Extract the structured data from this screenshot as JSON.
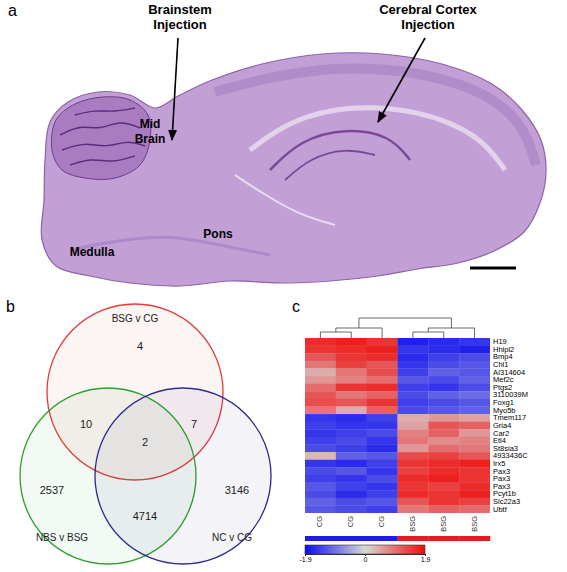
{
  "panel_a": {
    "letter": "a",
    "labels": {
      "brainstem_injection": "Brainstem Injection",
      "cortex_injection": "Cerebral Cortex Injection",
      "mid_brain": "Mid Brain",
      "pons": "Pons",
      "medulla": "Medulla"
    }
  },
  "panel_b": {
    "letter": "b",
    "sets": [
      {
        "name": "BSG v CG",
        "color": "#e03c3c"
      },
      {
        "name": "NBS v BSG",
        "color": "#2ca02c"
      },
      {
        "name": "NC v CG",
        "color": "#2c2c8c"
      }
    ],
    "regions": [
      {
        "sets": [
          0
        ],
        "count": 4
      },
      {
        "sets": [
          0,
          1
        ],
        "count": 10
      },
      {
        "sets": [
          0,
          2
        ],
        "count": 7
      },
      {
        "sets": [
          0,
          1,
          2
        ],
        "count": 2
      },
      {
        "sets": [
          1
        ],
        "count": 2537
      },
      {
        "sets": [
          1,
          2
        ],
        "count": 4714
      },
      {
        "sets": [
          2
        ],
        "count": 3146
      }
    ]
  },
  "panel_c": {
    "letter": "c"
  },
  "chart_data": {
    "type": "heatmap",
    "rows": [
      "H19",
      "Hhipl2",
      "Bmp4",
      "Chl1",
      "AI314604",
      "Mef2c",
      "Ptgs2",
      "3110039M",
      "Foxg1",
      "Myo5b",
      "Tmem117",
      "Gria4",
      "Car2",
      "Etl4",
      "St8sia3",
      "4933436C",
      "Irx5",
      "Pax3",
      "Pax3",
      "Pax3",
      "Pcyt1b",
      "Slc22a3",
      "Ubtf"
    ],
    "columns": [
      "CG",
      "CG",
      "CG",
      "BSG",
      "BSG",
      "BSG"
    ],
    "values": [
      [
        1.6,
        1.7,
        1.5,
        -1.7,
        -1.6,
        -1.5
      ],
      [
        1.5,
        1.6,
        1.7,
        -1.5,
        -1.6,
        -1.7
      ],
      [
        1.2,
        1.5,
        1.6,
        -1.6,
        -1.4,
        -1.3
      ],
      [
        0.9,
        1.4,
        1.2,
        -1.5,
        -1.3,
        -1.2
      ],
      [
        0.4,
        0.9,
        1.3,
        -1.4,
        -1.1,
        -1.2
      ],
      [
        0.6,
        0.8,
        1.0,
        -1.2,
        -1.3,
        -1.1
      ],
      [
        1.0,
        1.5,
        1.6,
        -1.4,
        -1.5,
        -1.3
      ],
      [
        1.2,
        0.9,
        1.1,
        -1.3,
        -1.1,
        -1.0
      ],
      [
        1.3,
        1.2,
        1.5,
        -1.4,
        -1.3,
        -1.2
      ],
      [
        0.9,
        0.4,
        1.1,
        -1.3,
        -1.2,
        -1.1
      ],
      [
        -1.5,
        -1.6,
        -1.4,
        0.4,
        0.6,
        0.5
      ],
      [
        -1.4,
        -1.5,
        -1.5,
        0.5,
        1.2,
        1.1
      ],
      [
        -1.5,
        -1.4,
        -1.3,
        0.8,
        1.1,
        0.6
      ],
      [
        -1.4,
        -1.3,
        -1.5,
        0.9,
        0.7,
        0.8
      ],
      [
        -1.3,
        -1.4,
        -1.6,
        0.6,
        1.0,
        0.9
      ],
      [
        0.3,
        -1.1,
        -1.2,
        1.3,
        1.4,
        1.2
      ],
      [
        -1.5,
        -1.6,
        -1.4,
        1.5,
        1.6,
        1.7
      ],
      [
        -1.3,
        -1.2,
        -1.5,
        1.4,
        1.6,
        1.5
      ],
      [
        -1.4,
        -1.5,
        -1.3,
        1.6,
        1.7,
        1.5
      ],
      [
        -1.2,
        -1.4,
        -1.5,
        1.5,
        1.4,
        1.6
      ],
      [
        -1.3,
        -1.6,
        -1.4,
        1.6,
        1.5,
        1.7
      ],
      [
        -1.1,
        -1.3,
        -1.2,
        1.2,
        1.5,
        1.4
      ],
      [
        -1.2,
        -1.3,
        -1.4,
        0.9,
        1.1,
        1.0
      ]
    ],
    "colorbar": {
      "range": [
        -1.9,
        1.9
      ],
      "ticks": [
        -1.9,
        0,
        1.9
      ]
    }
  }
}
